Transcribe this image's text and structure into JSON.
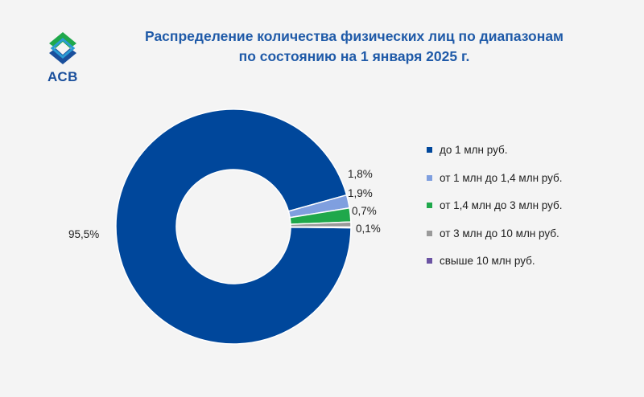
{
  "logo": {
    "text": "АСВ",
    "icon": "asv-logo-icon"
  },
  "title": {
    "line1": "Распределение количества физических лиц по диапазонам",
    "line2": "по состоянию на 1 января 2025 г."
  },
  "chart_data": {
    "type": "pie",
    "title": "Распределение количества физических лиц по диапазонам по состоянию на 1 января 2025 г.",
    "donut": true,
    "legend_position": "right",
    "categories": [
      "до 1 млн руб.",
      "от 1 млн до 1,4 млн руб.",
      "от 1,4 млн до 3 млн руб.",
      "от 3 млн до 10 млн руб.",
      "свыше 10 млн руб."
    ],
    "values": [
      95.5,
      1.8,
      1.9,
      0.7,
      0.1
    ],
    "labels": [
      "95,5%",
      "1,8%",
      "1,9%",
      "0,7%",
      "0,1%"
    ],
    "colors": [
      "#00479b",
      "#7f9fdf",
      "#1fa84b",
      "#9a9a9a",
      "#6b53a3"
    ]
  }
}
